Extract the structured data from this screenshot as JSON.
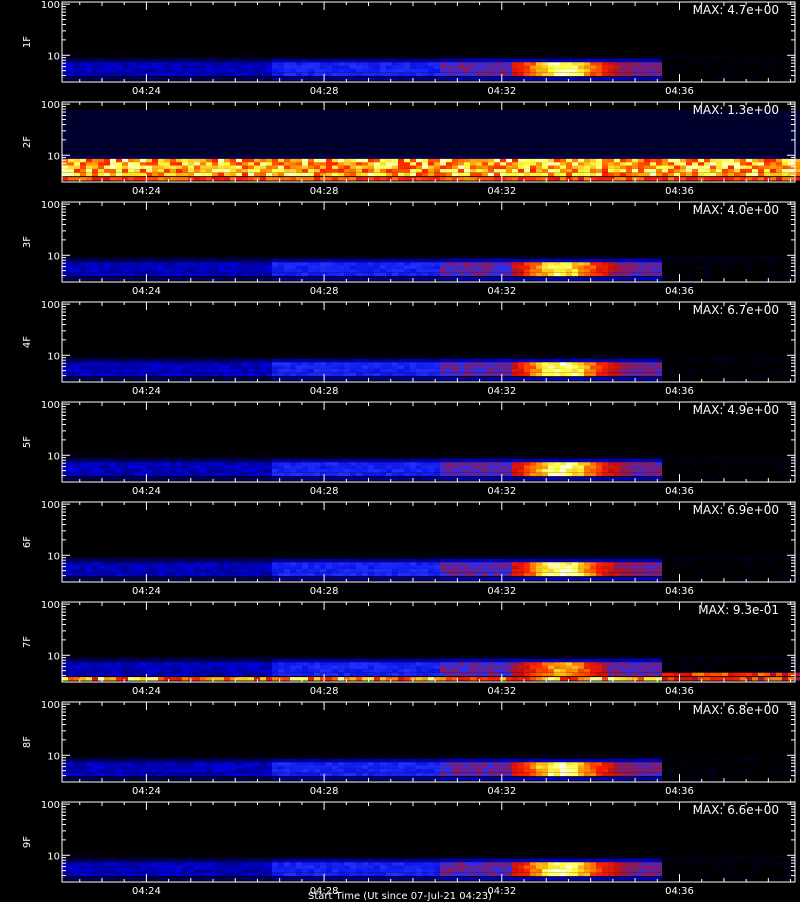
{
  "chart_data": {
    "type": "heatmap",
    "colors": {
      "background": "#000000",
      "axes": "#ffffff",
      "colormap": [
        "#000000",
        "#000060",
        "#0000d8",
        "#2030ff",
        "#c01010",
        "#ff2000",
        "#ff9000",
        "#ffff40",
        "#ffffff"
      ]
    },
    "x_axis": {
      "ticklabels": [
        "04:24",
        "04:28",
        "04:32",
        "04:36"
      ],
      "tick_minutes": [
        264,
        268,
        272,
        276
      ],
      "range_minutes": [
        262.1,
        278.6
      ],
      "title": "Start Time (Ut since 07-Jul-21 04:23)"
    },
    "y_axis": {
      "scale": "log",
      "range": [
        3,
        110
      ],
      "ticklabels": [
        "10",
        "100"
      ],
      "tick_values": [
        10,
        100
      ]
    },
    "panels": [
      {
        "label": "1F",
        "max": "MAX: 4.7e+00",
        "max_value": 4.7,
        "kind": "flare",
        "flare_intensity": 1.0
      },
      {
        "label": "2F",
        "max": "MAX: 1.3e+00",
        "max_value": 1.3,
        "kind": "saturated"
      },
      {
        "label": "3F",
        "max": "MAX: 4.0e+00",
        "max_value": 4.0,
        "kind": "flare",
        "flare_intensity": 0.95
      },
      {
        "label": "4F",
        "max": "MAX: 6.7e+00",
        "max_value": 6.7,
        "kind": "flare",
        "flare_intensity": 1.0
      },
      {
        "label": "5F",
        "max": "MAX: 4.9e+00",
        "max_value": 4.9,
        "kind": "flare",
        "flare_intensity": 1.0
      },
      {
        "label": "6F",
        "max": "MAX: 6.9e+00",
        "max_value": 6.9,
        "kind": "flare",
        "flare_intensity": 1.0
      },
      {
        "label": "7F",
        "max": "MAX: 9.3e-01",
        "max_value": 0.93,
        "kind": "noisy",
        "flare_intensity": 0.85
      },
      {
        "label": "8F",
        "max": "MAX: 6.8e+00",
        "max_value": 6.8,
        "kind": "flare",
        "flare_intensity": 1.0
      },
      {
        "label": "9F",
        "max": "MAX: 6.6e+00",
        "max_value": 6.6,
        "kind": "flare",
        "flare_intensity": 1.0
      }
    ]
  }
}
